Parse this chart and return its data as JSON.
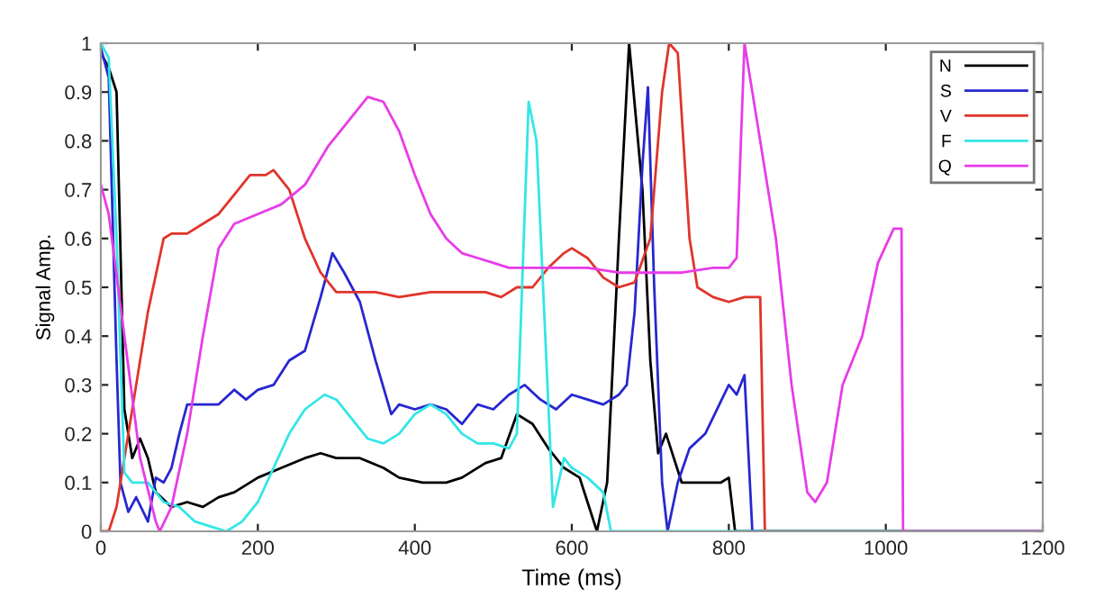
{
  "chart_data": {
    "type": "line",
    "xlabel": "Time (ms)",
    "ylabel": "Signal Amp.",
    "xlim": [
      0,
      1200
    ],
    "ylim": [
      0,
      1
    ],
    "xticks": [
      0,
      200,
      400,
      600,
      800,
      1000,
      1200
    ],
    "yticks": [
      0,
      0.1,
      0.2,
      0.3,
      0.4,
      0.5,
      0.6,
      0.7,
      0.8,
      0.9,
      1
    ],
    "grid": false,
    "legend": "top right",
    "line_style": "solid",
    "marker": "none",
    "series": [
      {
        "name": "N",
        "color": "#000000",
        "x": [
          0,
          10,
          20,
          30,
          40,
          50,
          60,
          70,
          90,
          110,
          130,
          150,
          170,
          200,
          230,
          260,
          280,
          300,
          330,
          360,
          380,
          410,
          440,
          460,
          490,
          510,
          530,
          550,
          570,
          590,
          610,
          620,
          632,
          645,
          660,
          673,
          690,
          700,
          710,
          720,
          740,
          760,
          790,
          800,
          808,
          1200
        ],
        "values": [
          0.98,
          0.95,
          0.9,
          0.25,
          0.15,
          0.19,
          0.15,
          0.08,
          0.05,
          0.06,
          0.05,
          0.07,
          0.08,
          0.11,
          0.13,
          0.15,
          0.16,
          0.15,
          0.15,
          0.13,
          0.11,
          0.1,
          0.1,
          0.11,
          0.14,
          0.15,
          0.24,
          0.22,
          0.17,
          0.13,
          0.11,
          0.06,
          0,
          0.1,
          0.6,
          1.0,
          0.7,
          0.35,
          0.16,
          0.2,
          0.1,
          0.1,
          0.1,
          0.11,
          0,
          0
        ]
      },
      {
        "name": "S",
        "color": "#2727d0",
        "x": [
          0,
          10,
          20,
          25,
          35,
          45,
          60,
          70,
          80,
          90,
          100,
          110,
          130,
          150,
          170,
          185,
          200,
          220,
          240,
          260,
          280,
          295,
          310,
          330,
          350,
          370,
          380,
          400,
          420,
          440,
          460,
          480,
          500,
          520,
          540,
          560,
          580,
          600,
          620,
          640,
          660,
          670,
          680,
          690,
          697,
          705,
          715,
          722,
          735,
          750,
          770,
          800,
          810,
          820,
          830,
          1200
        ],
        "values": [
          0.99,
          0.93,
          0.35,
          0.1,
          0.04,
          0.07,
          0.02,
          0.11,
          0.1,
          0.13,
          0.2,
          0.26,
          0.26,
          0.26,
          0.29,
          0.27,
          0.29,
          0.3,
          0.35,
          0.37,
          0.48,
          0.57,
          0.53,
          0.47,
          0.35,
          0.24,
          0.26,
          0.25,
          0.26,
          0.25,
          0.22,
          0.26,
          0.25,
          0.28,
          0.3,
          0.27,
          0.25,
          0.28,
          0.27,
          0.26,
          0.28,
          0.3,
          0.45,
          0.75,
          0.91,
          0.5,
          0.1,
          0,
          0.1,
          0.17,
          0.2,
          0.3,
          0.28,
          0.32,
          0,
          0
        ]
      },
      {
        "name": "V",
        "color": "#e0342a",
        "x": [
          0,
          10,
          20,
          40,
          60,
          80,
          90,
          110,
          130,
          150,
          170,
          190,
          210,
          220,
          240,
          260,
          280,
          300,
          320,
          350,
          380,
          420,
          460,
          490,
          510,
          530,
          550,
          570,
          590,
          600,
          620,
          640,
          660,
          680,
          700,
          715,
          724,
          735,
          750,
          760,
          780,
          800,
          820,
          840,
          846,
          1200
        ],
        "values": [
          0,
          0,
          0.05,
          0.25,
          0.45,
          0.6,
          0.61,
          0.61,
          0.63,
          0.65,
          0.69,
          0.73,
          0.73,
          0.74,
          0.7,
          0.6,
          0.53,
          0.49,
          0.49,
          0.49,
          0.48,
          0.49,
          0.49,
          0.49,
          0.48,
          0.5,
          0.5,
          0.54,
          0.57,
          0.58,
          0.56,
          0.52,
          0.5,
          0.51,
          0.6,
          0.9,
          1.0,
          0.98,
          0.6,
          0.5,
          0.48,
          0.47,
          0.48,
          0.48,
          0,
          0
        ]
      },
      {
        "name": "F",
        "color": "#33e6e6",
        "x": [
          0,
          10,
          20,
          30,
          40,
          60,
          80,
          100,
          120,
          140,
          160,
          180,
          200,
          220,
          240,
          260,
          285,
          300,
          320,
          340,
          360,
          380,
          400,
          420,
          440,
          460,
          480,
          500,
          520,
          530,
          545,
          555,
          576,
          590,
          600,
          620,
          640,
          650,
          1200
        ],
        "values": [
          1.0,
          0.97,
          0.6,
          0.12,
          0.1,
          0.1,
          0.06,
          0.05,
          0.02,
          0.01,
          0,
          0.02,
          0.06,
          0.13,
          0.2,
          0.25,
          0.28,
          0.27,
          0.23,
          0.19,
          0.18,
          0.2,
          0.24,
          0.26,
          0.24,
          0.2,
          0.18,
          0.18,
          0.17,
          0.2,
          0.88,
          0.8,
          0.05,
          0.15,
          0.13,
          0.11,
          0.08,
          0,
          0
        ]
      },
      {
        "name": "Q",
        "color": "#e83be8",
        "x": [
          0,
          10,
          30,
          50,
          70,
          75,
          90,
          110,
          130,
          150,
          170,
          200,
          230,
          260,
          290,
          320,
          340,
          360,
          380,
          400,
          420,
          440,
          460,
          480,
          500,
          520,
          550,
          580,
          620,
          660,
          700,
          740,
          780,
          800,
          810,
          820,
          840,
          860,
          880,
          900,
          910,
          925,
          945,
          970,
          990,
          1010,
          1020,
          1022,
          1200
        ],
        "values": [
          0.71,
          0.65,
          0.4,
          0.15,
          0.02,
          0,
          0.05,
          0.2,
          0.4,
          0.58,
          0.63,
          0.65,
          0.67,
          0.71,
          0.79,
          0.85,
          0.89,
          0.88,
          0.82,
          0.73,
          0.65,
          0.6,
          0.57,
          0.56,
          0.55,
          0.54,
          0.54,
          0.54,
          0.54,
          0.53,
          0.53,
          0.53,
          0.54,
          0.54,
          0.56,
          1.0,
          0.8,
          0.6,
          0.3,
          0.08,
          0.06,
          0.1,
          0.3,
          0.4,
          0.55,
          0.62,
          0.62,
          0,
          0
        ]
      }
    ]
  }
}
